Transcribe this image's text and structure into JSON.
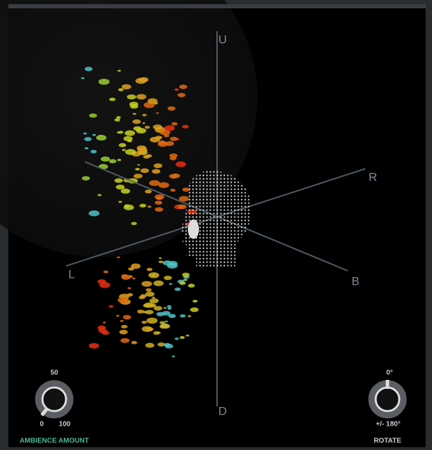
{
  "axes": {
    "up": "U",
    "down": "D",
    "left": "L",
    "right": "R",
    "back": "B"
  },
  "ambience": {
    "mid": "50",
    "min": "0",
    "max": "100",
    "label": "AMBIENCE AMOUNT"
  },
  "rotate": {
    "top": "0°",
    "range": "+/- 180°",
    "label": "ROTATE"
  }
}
